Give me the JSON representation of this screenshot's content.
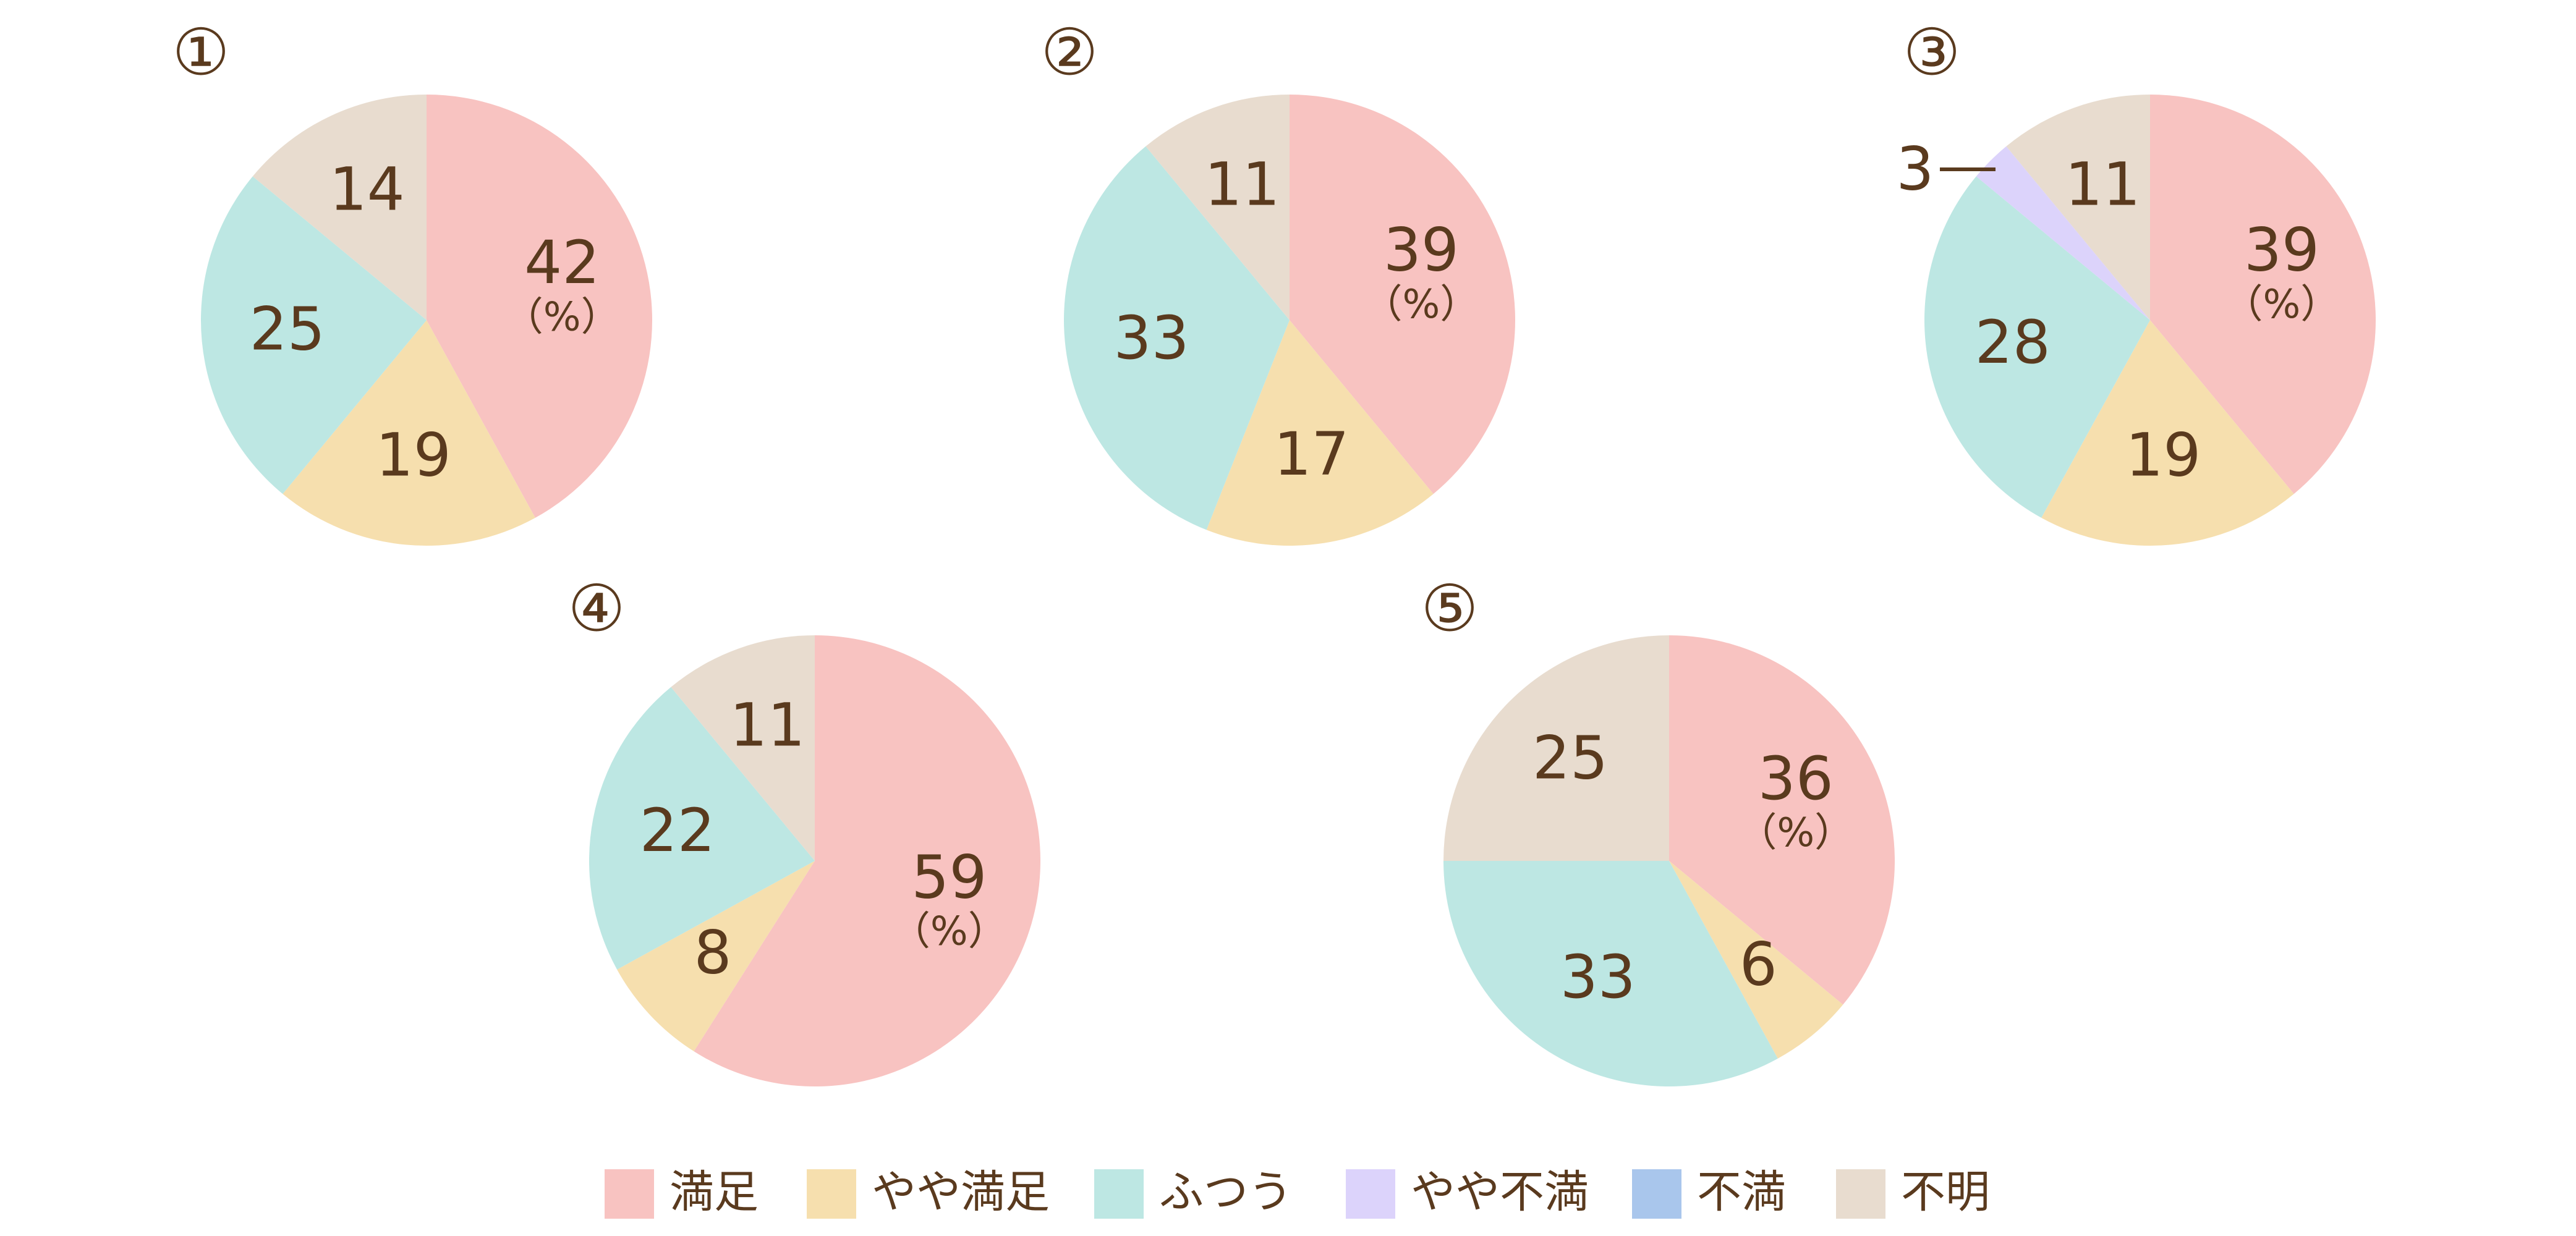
{
  "chart_data": [
    {
      "type": "pie",
      "panel_label": "①",
      "unit_label": "（%）",
      "slices": [
        {
          "category": "満足",
          "value": 42
        },
        {
          "category": "やや満足",
          "value": 19
        },
        {
          "category": "ふつう",
          "value": 25
        },
        {
          "category": "不明",
          "value": 14
        }
      ]
    },
    {
      "type": "pie",
      "panel_label": "②",
      "unit_label": "（%）",
      "slices": [
        {
          "category": "満足",
          "value": 39
        },
        {
          "category": "やや満足",
          "value": 17
        },
        {
          "category": "ふつう",
          "value": 33
        },
        {
          "category": "不明",
          "value": 11
        }
      ]
    },
    {
      "type": "pie",
      "panel_label": "③",
      "unit_label": "（%）",
      "slices": [
        {
          "category": "満足",
          "value": 39
        },
        {
          "category": "やや満足",
          "value": 19
        },
        {
          "category": "ふつう",
          "value": 28
        },
        {
          "category": "やや不満",
          "value": 3
        },
        {
          "category": "不明",
          "value": 11
        }
      ]
    },
    {
      "type": "pie",
      "panel_label": "④",
      "unit_label": "（%）",
      "slices": [
        {
          "category": "満足",
          "value": 59
        },
        {
          "category": "やや満足",
          "value": 8
        },
        {
          "category": "ふつう",
          "value": 22
        },
        {
          "category": "不明",
          "value": 11
        }
      ]
    },
    {
      "type": "pie",
      "panel_label": "⑤",
      "unit_label": "（%）",
      "slices": [
        {
          "category": "満足",
          "value": 36
        },
        {
          "category": "やや満足",
          "value": 6
        },
        {
          "category": "ふつう",
          "value": 33
        },
        {
          "category": "不明",
          "value": 25
        }
      ]
    }
  ],
  "legend": {
    "placement": "bottom",
    "items": [
      {
        "label": "満足",
        "color": "#f8c3c1"
      },
      {
        "label": "やや満足",
        "color": "#f6dfae"
      },
      {
        "label": "ふつう",
        "color": "#bde7e3"
      },
      {
        "label": "やや不満",
        "color": "#dcd3fb"
      },
      {
        "label": "不満",
        "color": "#a9c6ec"
      },
      {
        "label": "不明",
        "color": "#e8dccf"
      }
    ]
  },
  "colors": {
    "text": "#5a3a1e"
  }
}
